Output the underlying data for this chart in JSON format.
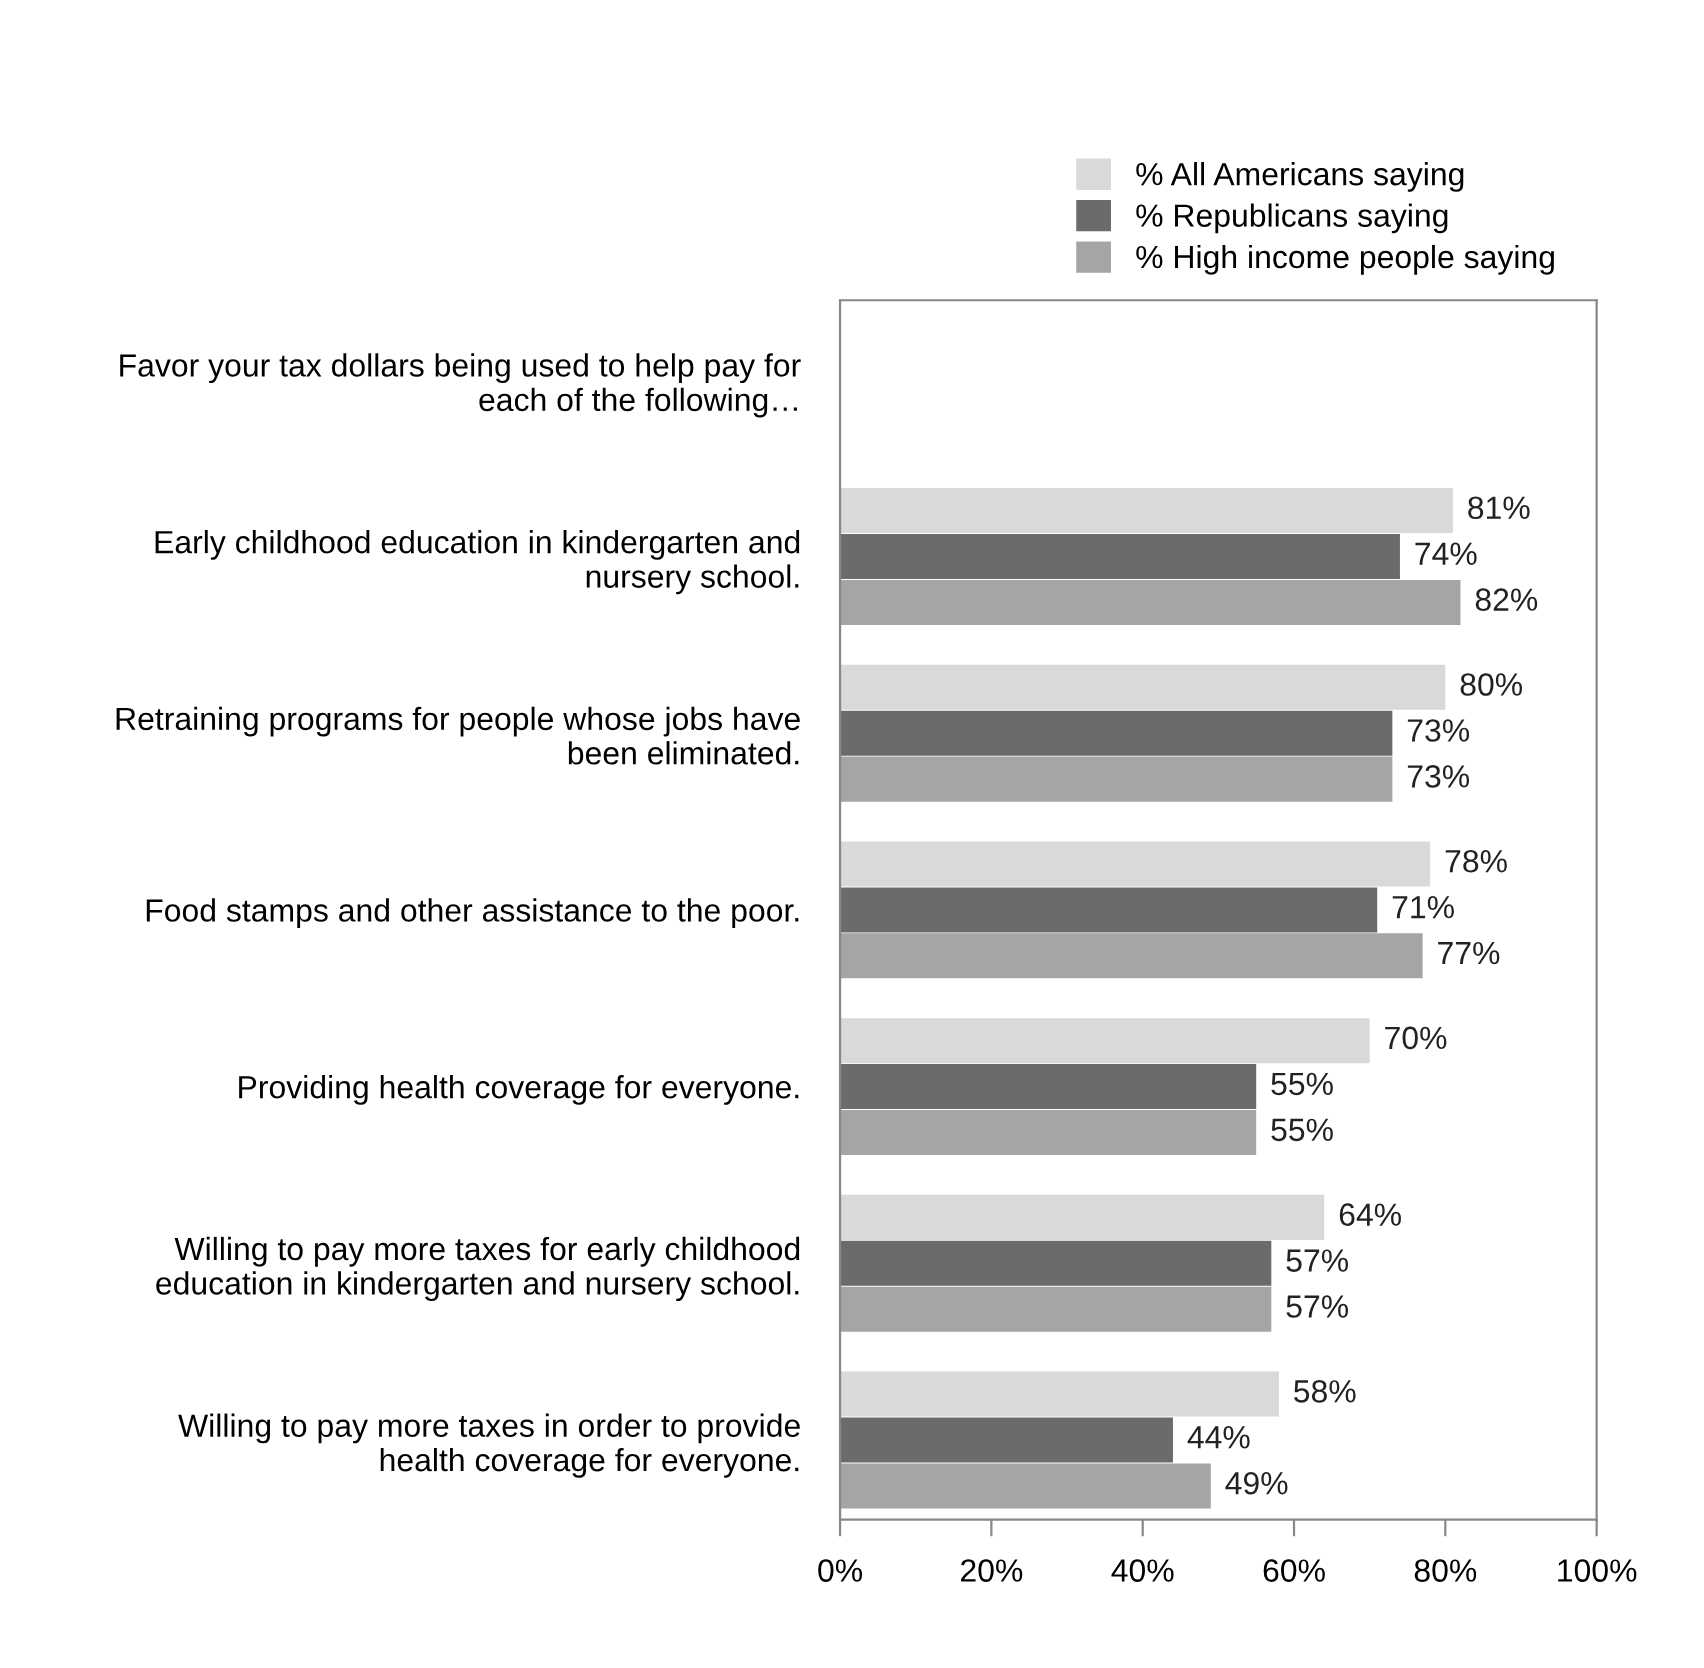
{
  "chart_data": {
    "type": "bar",
    "orientation": "horizontal",
    "categories": [
      "Favor your tax dollars being used to help pay for\neach of the following…",
      "Early childhood education in kindergarten and\nnursery school.",
      "Retraining programs for people whose jobs have\nbeen eliminated.",
      "Food stamps and other assistance to the poor.",
      "Providing health coverage for everyone.",
      "Willing to pay more taxes for early childhood\neducation in kindergarten and nursery school.",
      "Willing to pay more taxes in order to provide\nhealth coverage for everyone."
    ],
    "series": [
      {
        "name": "% All Americans saying",
        "color": "#d9d9d9",
        "values": [
          null,
          81,
          80,
          78,
          70,
          64,
          58
        ],
        "value_labels": [
          null,
          "81%",
          "80%",
          "78%",
          "70%",
          "64%",
          "58%"
        ]
      },
      {
        "name": "% Republicans saying",
        "color": "#6b6b6d",
        "values": [
          null,
          74,
          73,
          71,
          55,
          57,
          44
        ],
        "value_labels": [
          null,
          "74%",
          "73%",
          "71%",
          "55%",
          "57%",
          "44%"
        ]
      },
      {
        "name": "% High income people saying",
        "color": "#a5a5a7",
        "values": [
          null,
          82,
          73,
          77,
          55,
          57,
          49
        ],
        "value_labels": [
          null,
          "82%",
          "73%",
          "77%",
          "55%",
          "57%",
          "49%"
        ]
      }
    ],
    "xlim": [
      0,
      100
    ],
    "xticks": [
      {
        "value": 0,
        "label": "0%"
      },
      {
        "value": 20,
        "label": "20%"
      },
      {
        "value": 40,
        "label": "40%"
      },
      {
        "value": 60,
        "label": "60%"
      },
      {
        "value": 80,
        "label": "80%"
      },
      {
        "value": 100,
        "label": "100%"
      }
    ],
    "grid": false,
    "legend": "top right"
  }
}
